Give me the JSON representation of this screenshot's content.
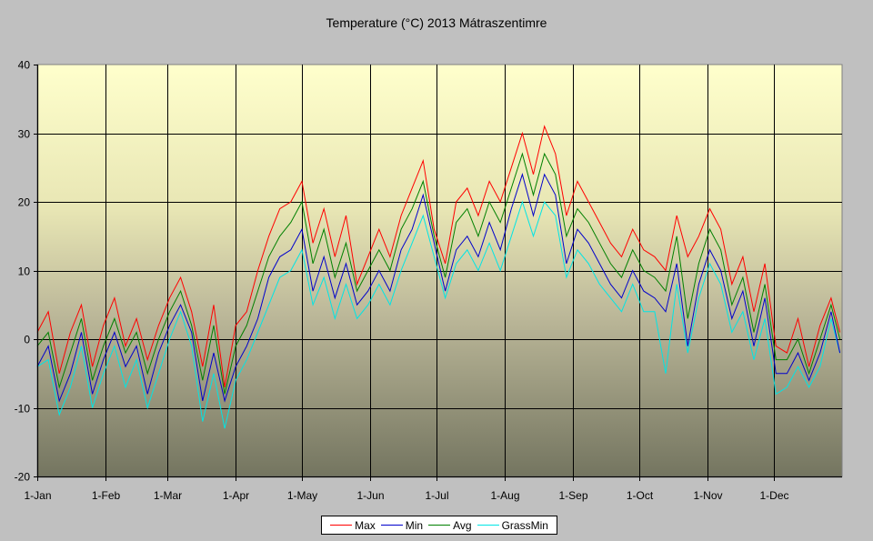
{
  "chart_data": {
    "type": "line",
    "title": "Temperature (°C) 2013 Mátraszentimre",
    "xlabel": "",
    "ylabel": "",
    "ylim": [
      -20,
      40
    ],
    "yticks": [
      -20,
      -10,
      0,
      10,
      20,
      30,
      40
    ],
    "xlim_days": [
      0,
      365
    ],
    "xticks": [
      {
        "day": 0,
        "label": "1-Jan"
      },
      {
        "day": 31,
        "label": "1-Feb"
      },
      {
        "day": 59,
        "label": "1-Mar"
      },
      {
        "day": 90,
        "label": "1-Apr"
      },
      {
        "day": 120,
        "label": "1-May"
      },
      {
        "day": 151,
        "label": "1-Jun"
      },
      {
        "day": 181,
        "label": "1-Jul"
      },
      {
        "day": 212,
        "label": "1-Aug"
      },
      {
        "day": 243,
        "label": "1-Sep"
      },
      {
        "day": 273,
        "label": "1-Oct"
      },
      {
        "day": 304,
        "label": "1-Nov"
      },
      {
        "day": 334,
        "label": "1-Dec"
      }
    ],
    "grid": true,
    "legend_position": "bottom",
    "x_days": [
      0,
      5,
      10,
      15,
      20,
      25,
      30,
      35,
      40,
      45,
      50,
      55,
      60,
      65,
      70,
      75,
      80,
      85,
      90,
      95,
      100,
      105,
      110,
      115,
      120,
      125,
      130,
      135,
      140,
      145,
      150,
      155,
      160,
      165,
      170,
      175,
      180,
      185,
      190,
      195,
      200,
      205,
      210,
      215,
      220,
      225,
      230,
      235,
      240,
      245,
      250,
      255,
      260,
      265,
      270,
      275,
      280,
      285,
      290,
      295,
      300,
      305,
      310,
      315,
      320,
      325,
      330,
      335,
      340,
      345,
      350,
      355,
      360,
      364
    ],
    "series": [
      {
        "name": "Max",
        "color": "#ff0000",
        "values": [
          1,
          4,
          -5,
          1,
          5,
          -4,
          2,
          6,
          -1,
          3,
          -3,
          2,
          6,
          9,
          4,
          -4,
          5,
          -7,
          2,
          4,
          10,
          15,
          19,
          20,
          23,
          14,
          19,
          12,
          18,
          8,
          12,
          16,
          12,
          18,
          22,
          26,
          16,
          11,
          20,
          22,
          18,
          23,
          20,
          25,
          30,
          24,
          31,
          27,
          18,
          23,
          20,
          17,
          14,
          12,
          16,
          13,
          12,
          10,
          18,
          12,
          15,
          19,
          16,
          8,
          12,
          4,
          11,
          -1,
          -2,
          3,
          -4,
          2,
          6,
          1
        ]
      },
      {
        "name": "Min",
        "color": "#0000cc",
        "values": [
          -4,
          -1,
          -9,
          -5,
          1,
          -8,
          -3,
          1,
          -4,
          -1,
          -8,
          -2,
          2,
          5,
          1,
          -9,
          -2,
          -9,
          -4,
          -1,
          3,
          9,
          12,
          13,
          16,
          7,
          12,
          6,
          11,
          5,
          7,
          10,
          7,
          13,
          16,
          21,
          14,
          7,
          13,
          15,
          12,
          17,
          13,
          19,
          24,
          18,
          24,
          21,
          11,
          16,
          14,
          11,
          8,
          6,
          10,
          7,
          6,
          4,
          11,
          -1,
          8,
          13,
          10,
          3,
          7,
          -1,
          6,
          -5,
          -5,
          -2,
          -6,
          -2,
          4,
          -2
        ]
      },
      {
        "name": "Avg",
        "color": "#008000",
        "values": [
          -1,
          1,
          -7,
          -2,
          3,
          -6,
          -1,
          3,
          -2,
          1,
          -5,
          0,
          4,
          7,
          2,
          -6,
          2,
          -8,
          -1,
          2,
          7,
          12,
          15,
          17,
          20,
          11,
          16,
          9,
          14,
          7,
          10,
          13,
          10,
          16,
          19,
          23,
          15,
          9,
          17,
          19,
          15,
          20,
          17,
          22,
          27,
          21,
          27,
          24,
          15,
          19,
          17,
          14,
          11,
          9,
          13,
          10,
          9,
          7,
          15,
          3,
          11,
          16,
          13,
          5,
          9,
          1,
          8,
          -3,
          -3,
          0,
          -5,
          0,
          5,
          0
        ]
      },
      {
        "name": "GrassMin",
        "color": "#00e5e5",
        "values": [
          -4,
          -3,
          -11,
          -7,
          -1,
          -10,
          -5,
          -1,
          -7,
          -3,
          -10,
          -5,
          0,
          4,
          -1,
          -12,
          -5,
          -13,
          -6,
          -3,
          1,
          5,
          9,
          10,
          13,
          5,
          9,
          3,
          8,
          3,
          5,
          8,
          5,
          10,
          14,
          18,
          12,
          6,
          11,
          13,
          10,
          14,
          10,
          15,
          20,
          15,
          20,
          18,
          9,
          13,
          11,
          8,
          6,
          4,
          8,
          4,
          4,
          -5,
          8,
          -2,
          6,
          11,
          8,
          1,
          4,
          -3,
          3,
          -8,
          -7,
          -4,
          -7,
          -4,
          3,
          -2
        ]
      }
    ]
  }
}
